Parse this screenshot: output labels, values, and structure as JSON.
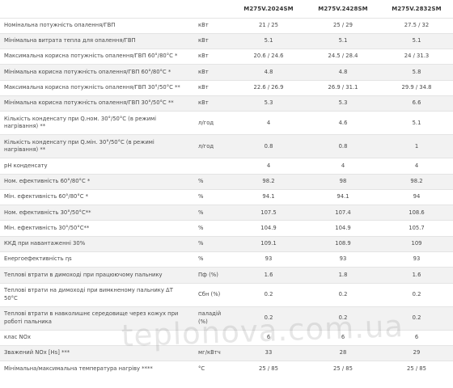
{
  "table": {
    "headers": [
      "",
      "",
      "M275V.2024SM",
      "M275V.2428SM",
      "M275V.2832SM"
    ],
    "rows": [
      {
        "param": "Номінальна потужність опалення/ГВП",
        "unit": "кВт",
        "v1": "21 / 25",
        "v2": "25 / 29",
        "v3": "27.5 / 32"
      },
      {
        "param": "Мінімальна витрата тепла для опалення/ГВП",
        "unit": "кВт",
        "v1": "5.1",
        "v2": "5.1",
        "v3": "5.1"
      },
      {
        "param": "Максимальна корисна потужність опалення/ГВП 60°/80°С *",
        "unit": "кВт",
        "v1": "20.6 / 24.6",
        "v2": "24.5 / 28.4",
        "v3": "24 / 31.3"
      },
      {
        "param": "Мінімальна корисна потужність опалення/ГВП 60°/80°С *",
        "unit": "кВт",
        "v1": "4.8",
        "v2": "4.8",
        "v3": "5.8"
      },
      {
        "param": "Максимальна корисна потужність опалення/ГВП 30°/50°С **",
        "unit": "кВт",
        "v1": "22.6 / 26.9",
        "v2": "26.9 / 31.1",
        "v3": "29.9 / 34.8"
      },
      {
        "param": "Мінімальна корисна потужність опалення/ГВП 30°/50°С **",
        "unit": "кВт",
        "v1": "5.3",
        "v2": "5.3",
        "v3": "6.6"
      },
      {
        "param": "Кількість конденсату при Q.ном. 30°/50°С (в режимі нагрівання) **",
        "unit": "л/год",
        "v1": "4",
        "v2": "4.6",
        "v3": "5.1"
      },
      {
        "param": "Кількість конденсату при Q.мін. 30°/50°С (в режимі нагрівання) **",
        "unit": "л/год",
        "v1": "0.8",
        "v2": "0.8",
        "v3": "1"
      },
      {
        "param": "pH конденсату",
        "unit": "",
        "v1": "4",
        "v2": "4",
        "v3": "4"
      },
      {
        "param": "Ном. ефективність 60°/80°С *",
        "unit": "%",
        "v1": "98.2",
        "v2": "98",
        "v3": "98.2"
      },
      {
        "param": "Мін. ефективність 60°/80°С *",
        "unit": "%",
        "v1": "94.1",
        "v2": "94.1",
        "v3": "94"
      },
      {
        "param": "Ном. ефективність 30°/50°С**",
        "unit": "%",
        "v1": "107.5",
        "v2": "107.4",
        "v3": "108.6"
      },
      {
        "param": "Мін. ефективність 30°/50°С**",
        "unit": "%",
        "v1": "104.9",
        "v2": "104.9",
        "v3": "105.7"
      },
      {
        "param": "ККД при навантаженні 30%",
        "unit": "%",
        "v1": "109.1",
        "v2": "108.9",
        "v3": "109"
      },
      {
        "param": "Енергоефективність ηs",
        "unit": "%",
        "v1": "93",
        "v2": "93",
        "v3": "93"
      },
      {
        "param": "Теплові втрати в димоході при працюючому пальнику",
        "unit": "Пф (%)",
        "v1": "1.6",
        "v2": "1.8",
        "v3": "1.6"
      },
      {
        "param": "Теплові втрати на димоході при вимкненому пальнику ΔТ 50°С",
        "unit": "Сбн (%)",
        "v1": "0.2",
        "v2": "0.2",
        "v3": "0.2"
      },
      {
        "param": "Теплові втрати в навколишнє середовище через кожух при роботі пальника",
        "unit": "паладій (%)",
        "v1": "0.2",
        "v2": "0.2",
        "v3": "0.2"
      },
      {
        "param": "клас NOx",
        "unit": "",
        "v1": "6",
        "v2": "6",
        "v3": "6"
      },
      {
        "param": "Зважений NOx [Hs] ***",
        "unit": "мг/кВтч",
        "v1": "33",
        "v2": "28",
        "v3": "29"
      },
      {
        "param": "Мінімальна/максимальна температура нагріву ****",
        "unit": "°С",
        "v1": "25 / 85",
        "v2": "25 / 85",
        "v3": "25 / 85"
      }
    ]
  },
  "watermark": "teplonova.com.ua"
}
